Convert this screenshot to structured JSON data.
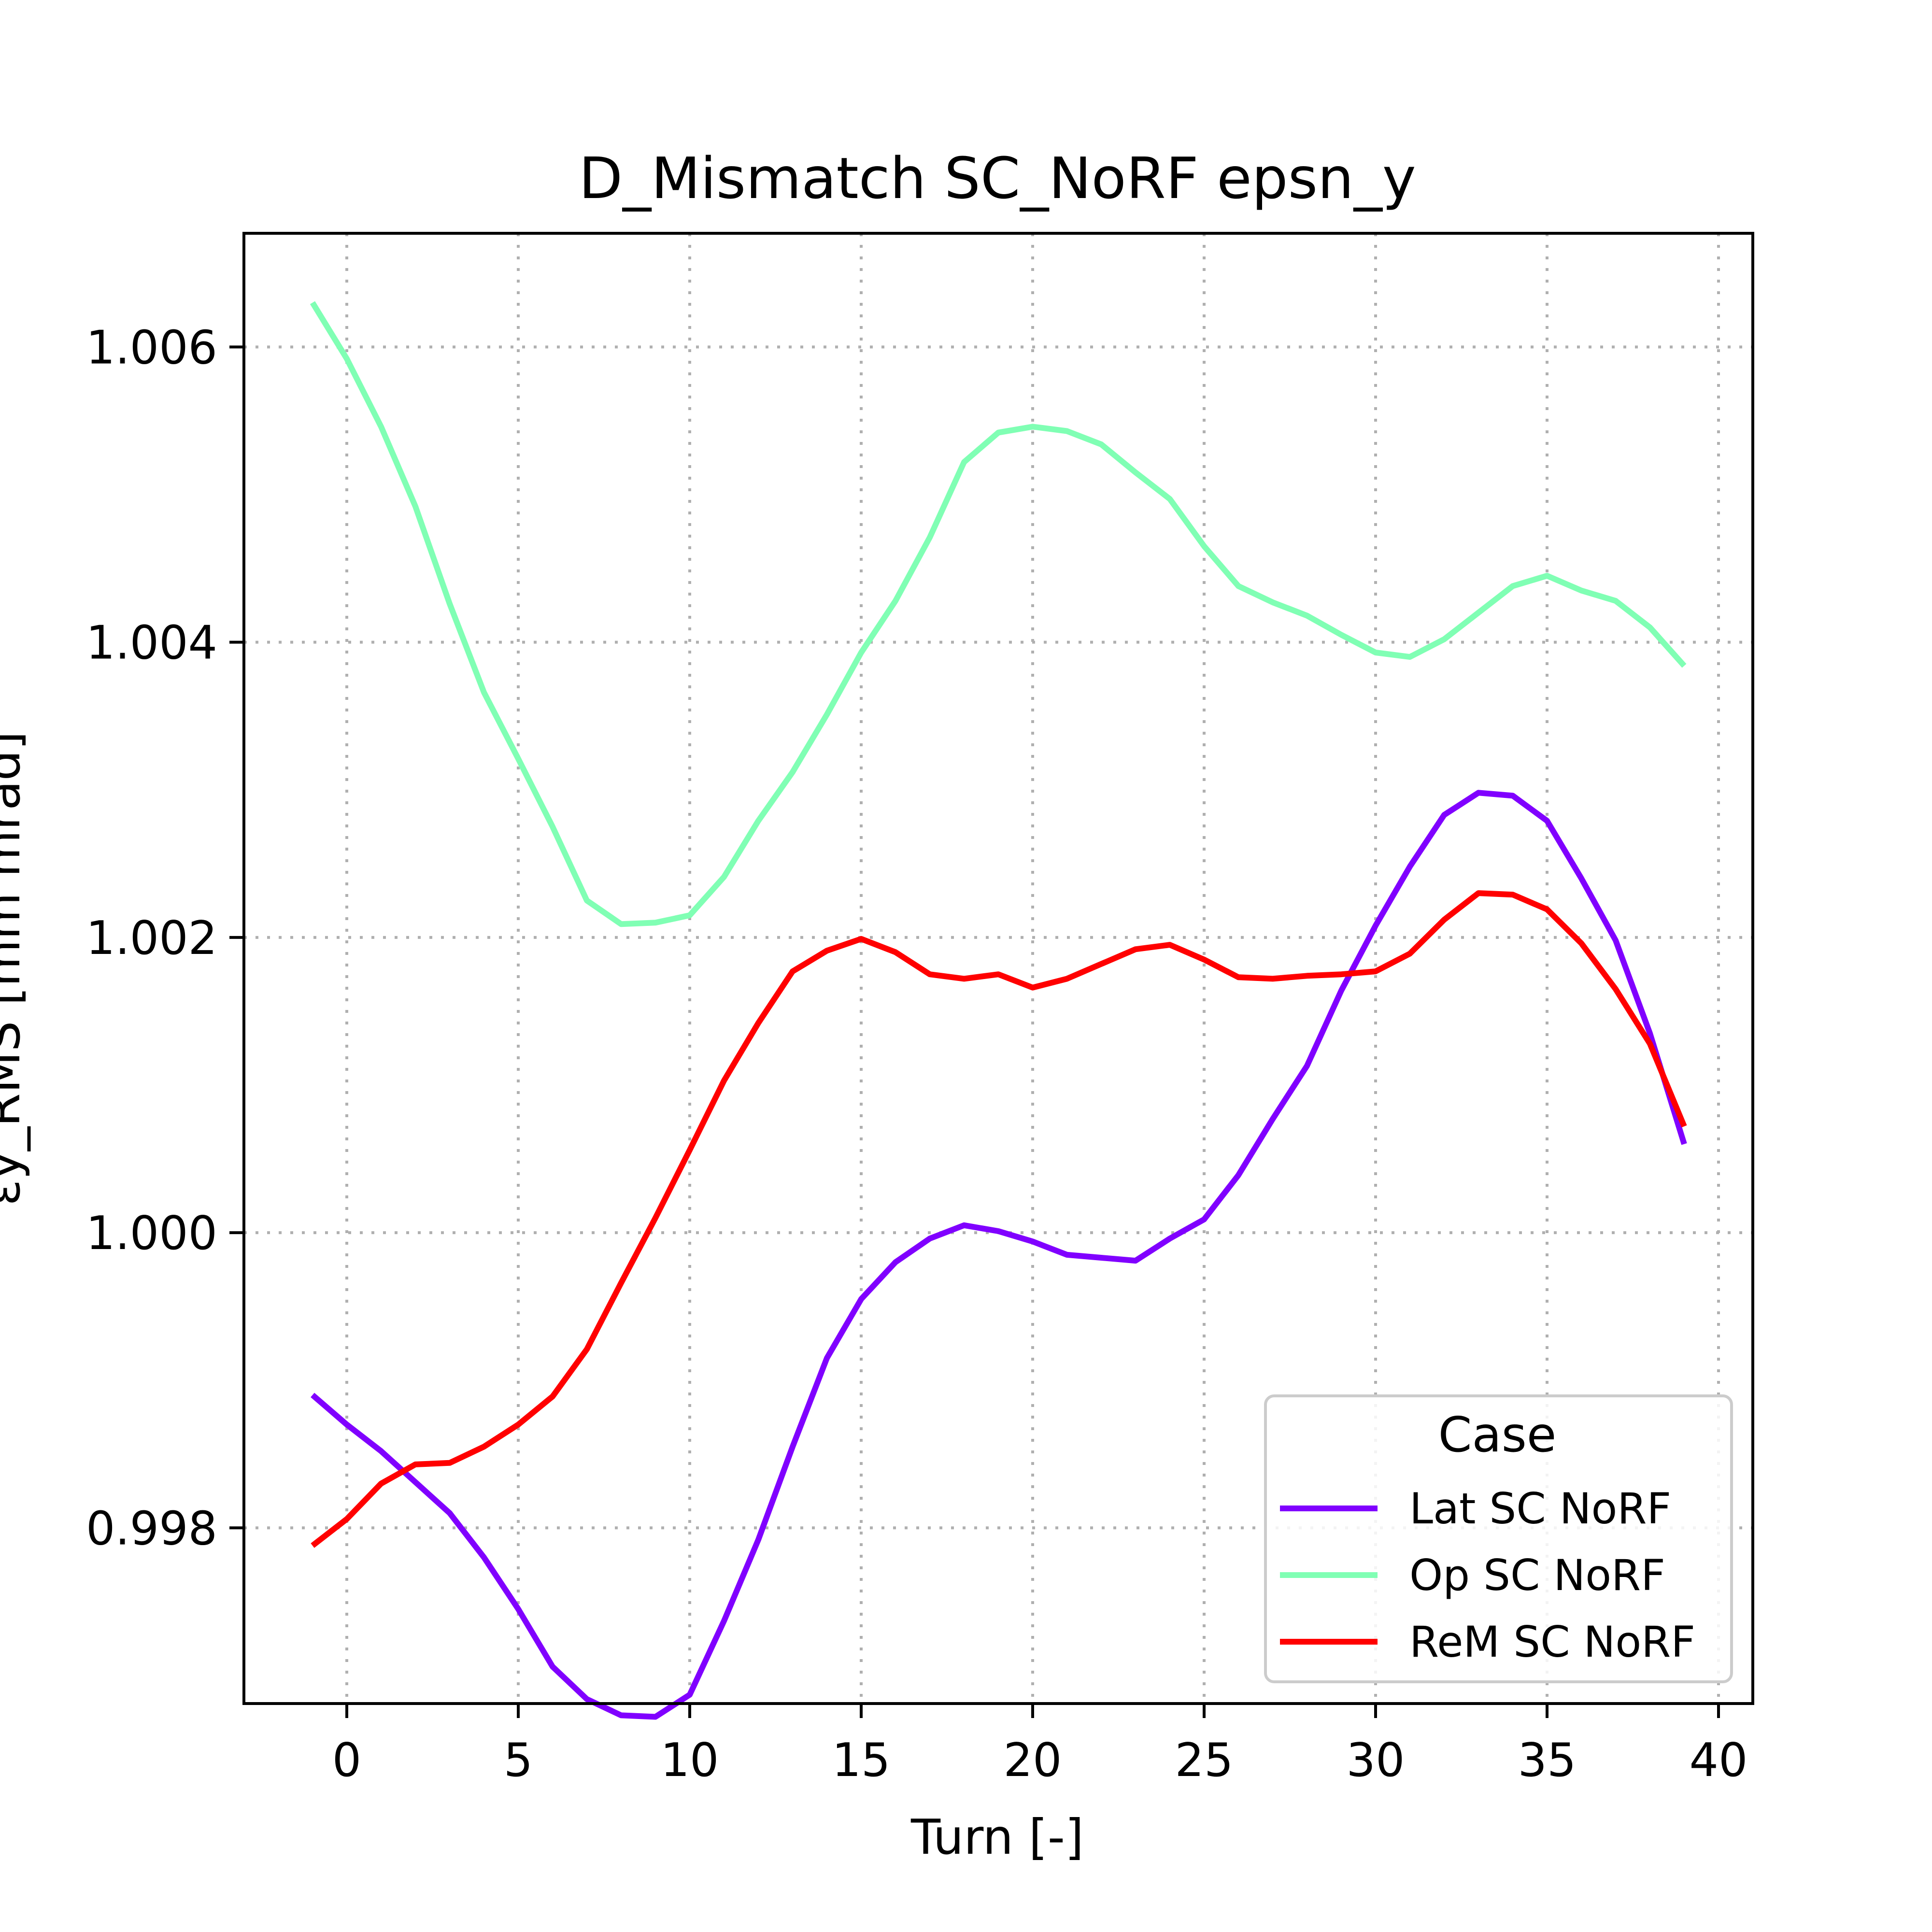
{
  "chart_data": {
    "type": "line",
    "title": "D_Mismatch SC_NoRF epsn_y",
    "xlabel": "Turn [-]",
    "ylabel": "εy_RMS [mm mrad]",
    "xlim": [
      -3,
      41
    ],
    "ylim": [
      0.99681,
      1.00677
    ],
    "xticks": [
      0,
      5,
      10,
      15,
      20,
      25,
      30,
      35,
      40
    ],
    "xtick_labels": [
      "0",
      "5",
      "10",
      "15",
      "20",
      "25",
      "30",
      "35",
      "40"
    ],
    "yticks": [
      0.998,
      1.0,
      1.002,
      1.004,
      1.006
    ],
    "ytick_labels": [
      "0.998",
      "1.000",
      "1.002",
      "1.004",
      "1.006"
    ],
    "grid": true,
    "legend": {
      "title": "Case",
      "position": "lower-right"
    },
    "x": [
      -1,
      0,
      1,
      2,
      3,
      4,
      5,
      6,
      7,
      8,
      9,
      10,
      11,
      12,
      13,
      14,
      15,
      16,
      17,
      18,
      19,
      20,
      21,
      22,
      23,
      24,
      25,
      26,
      27,
      28,
      29,
      30,
      31,
      32,
      33,
      34,
      35,
      36,
      37,
      38,
      39
    ],
    "series": [
      {
        "name": "Lat SC NoRF",
        "color": "#8000ff",
        "values": [
          0.9989,
          0.9987,
          0.99852,
          0.99831,
          0.9981,
          0.9978,
          0.99745,
          0.99706,
          0.99684,
          0.99673,
          0.99672,
          0.99687,
          0.99737,
          0.99792,
          0.99855,
          0.99915,
          0.99955,
          0.9998,
          0.99996,
          1.00005,
          1.00001,
          0.99994,
          0.99985,
          0.99983,
          0.99981,
          0.99996,
          1.00009,
          1.00039,
          1.00077,
          1.00113,
          1.00164,
          1.00208,
          1.00248,
          1.00283,
          1.00298,
          1.00296,
          1.00279,
          1.0024,
          1.00198,
          1.00135,
          1.0006
        ]
      },
      {
        "name": "Op SC NoRF",
        "color": "#80ffb4",
        "values": [
          1.0063,
          1.00592,
          1.00546,
          1.00492,
          1.00426,
          1.00366,
          1.00321,
          1.00275,
          1.00225,
          1.00209,
          1.0021,
          1.00215,
          1.00241,
          1.00279,
          1.00312,
          1.00351,
          1.00393,
          1.00428,
          1.00471,
          1.00522,
          1.00542,
          1.00546,
          1.00543,
          1.00534,
          1.00515,
          1.00497,
          1.00465,
          1.00438,
          1.00427,
          1.00418,
          1.00405,
          1.00393,
          1.0039,
          1.00402,
          1.0042,
          1.00438,
          1.00445,
          1.00435,
          1.00428,
          1.0041,
          1.00384
        ]
      },
      {
        "name": "ReM SC NoRF",
        "color": "#ff0000",
        "values": [
          0.99788,
          0.99806,
          0.9983,
          0.99843,
          0.99844,
          0.99855,
          0.9987,
          0.99889,
          0.99921,
          0.99966,
          1.0001,
          1.00056,
          1.00103,
          1.00142,
          1.00177,
          1.00191,
          1.00199,
          1.0019,
          1.00175,
          1.00172,
          1.00175,
          1.00166,
          1.00172,
          1.00182,
          1.00192,
          1.00195,
          1.00185,
          1.00173,
          1.00172,
          1.00174,
          1.00175,
          1.00177,
          1.00189,
          1.00212,
          1.0023,
          1.00229,
          1.00219,
          1.00196,
          1.00165,
          1.00128,
          1.00072
        ]
      }
    ]
  }
}
